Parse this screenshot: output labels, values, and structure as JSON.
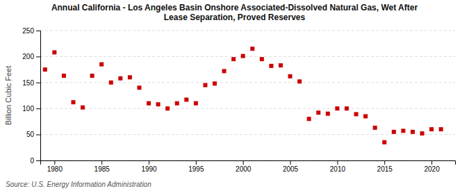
{
  "chart_data": {
    "type": "scatter",
    "title": "Annual California - Los Angeles Basin Onshore Associated-Dissolved Natural Gas, Wet After\nLease Separation, Proved Reserves",
    "y_label": "Billion Cubic Feet",
    "source": "Source: U.S. Energy Information Administration",
    "x": [
      1979,
      1980,
      1981,
      1982,
      1983,
      1984,
      1985,
      1986,
      1987,
      1988,
      1989,
      1990,
      1991,
      1992,
      1993,
      1994,
      1995,
      1996,
      1997,
      1998,
      1999,
      2000,
      2001,
      2002,
      2003,
      2004,
      2005,
      2006,
      2007,
      2008,
      2009,
      2010,
      2011,
      2012,
      2013,
      2014,
      2015,
      2016,
      2017,
      2018,
      2019,
      2020,
      2021
    ],
    "values": [
      175,
      208,
      163,
      112,
      102,
      163,
      185,
      150,
      158,
      160,
      140,
      110,
      108,
      100,
      110,
      117,
      110,
      145,
      148,
      172,
      195,
      201,
      215,
      195,
      182,
      183,
      162,
      152,
      80,
      92,
      90,
      100,
      100,
      89,
      85,
      63,
      35,
      55,
      57,
      55,
      52,
      60,
      60
    ],
    "color": "#cc0000",
    "marker": "square",
    "xlim": [
      1978.5,
      2022.5
    ],
    "ylim": [
      0,
      250
    ],
    "xticks": [
      1980,
      1985,
      1990,
      1995,
      2000,
      2005,
      2010,
      2015,
      2020
    ],
    "yticks": [
      0,
      50,
      100,
      150,
      200,
      250
    ],
    "grid": true
  }
}
